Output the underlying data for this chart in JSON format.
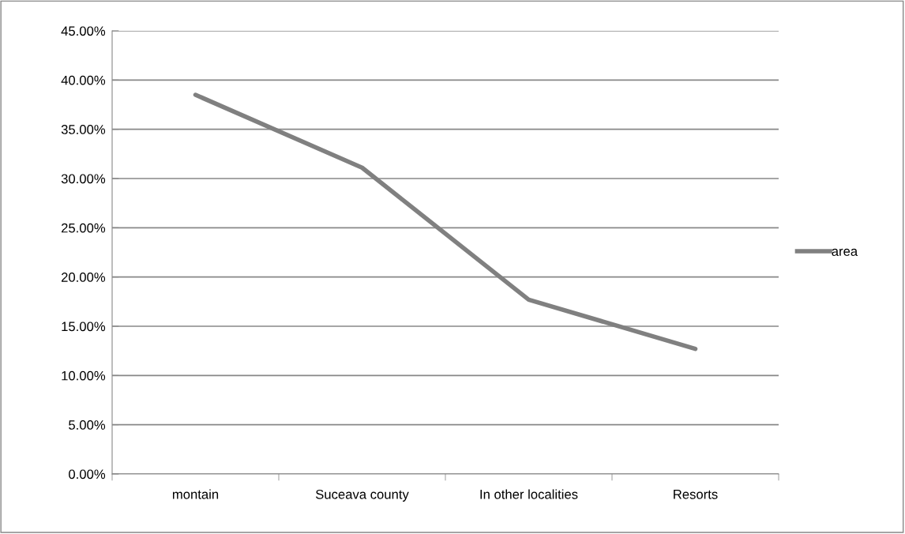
{
  "chart_data": {
    "type": "line",
    "categories": [
      "montain",
      "Suceava county",
      "In other localities",
      "Resorts"
    ],
    "series": [
      {
        "name": "area",
        "color": "#808080",
        "values": [
          38.5,
          31.1,
          17.7,
          12.7
        ]
      }
    ],
    "ylim": [
      0,
      45
    ],
    "yticks": [
      {
        "value": 0,
        "label": "0.00%"
      },
      {
        "value": 5,
        "label": "5.00%"
      },
      {
        "value": 10,
        "label": "10.00%"
      },
      {
        "value": 15,
        "label": "15.00%"
      },
      {
        "value": 20,
        "label": "20.00%"
      },
      {
        "value": 25,
        "label": "25.00%"
      },
      {
        "value": 30,
        "label": "30.00%"
      },
      {
        "value": 35,
        "label": "35.00%"
      },
      {
        "value": 40,
        "label": "40.00%"
      },
      {
        "value": 45,
        "label": "45.00%"
      }
    ],
    "grid": "y",
    "legend": "right",
    "marker": "none",
    "line_style": "solid"
  }
}
